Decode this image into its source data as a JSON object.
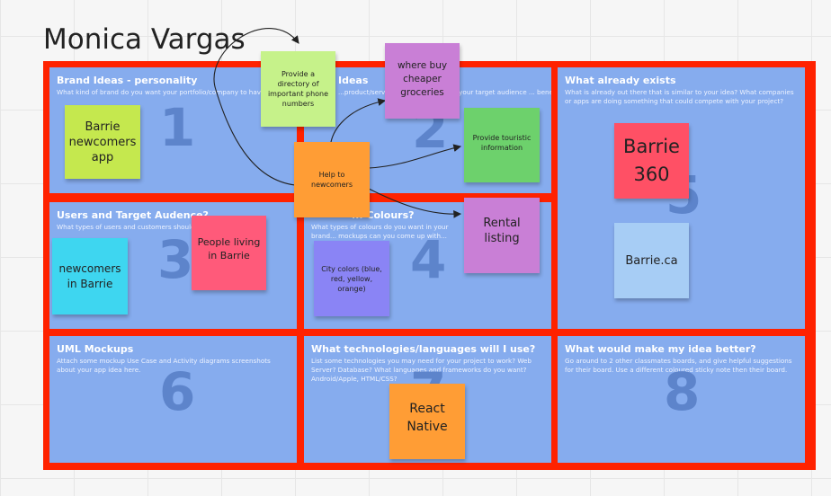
{
  "board": {
    "title": "Monica Vargas"
  },
  "sections": {
    "s1": {
      "heading": "Brand Ideas - personality",
      "desc": "What kind of brand do you want your portfolio/company to have?",
      "num": "1"
    },
    "s2": {
      "heading": "Ideas",
      "desc": "...product/service/experience ... help your target audience ... benefits the...",
      "num": "2"
    },
    "s3": {
      "heading": "Users and Target Audence?",
      "desc": "What types of users and customers should...",
      "num": "3"
    },
    "s4": {
      "heading": "... Colours?",
      "desc": "What types of colours do you want in your brand... mockups can you come up with...",
      "num": "4"
    },
    "s5": {
      "heading": "What already exists",
      "desc": "What is already out there that is similar to your idea? What companies or apps are doing something that could compete with your project?",
      "num": "5"
    },
    "s6": {
      "heading": "UML Mockups",
      "desc": "Attach some mockup Use Case and Activity diagrams screenshots about your app idea here.",
      "num": "6"
    },
    "s7": {
      "heading": "What technologies/languages will I use?",
      "desc": "List some technologies you may need for your project to work? Web Server? Database? What languages and frameworks do you want? Android/Apple, HTML/CSS?",
      "num": "7"
    },
    "s8": {
      "heading": "What would make my idea better?",
      "desc": "Go around to 2 other classmates boards, and give helpful suggestions for their board. Use a different coloured sticky note then their board.",
      "num": "8"
    }
  },
  "stickies": {
    "barrie_newcomers_app": {
      "text": "Barrie newcomers app",
      "color": "#c5e84e"
    },
    "directory": {
      "text": "Provide a directory of important phone numbers",
      "color": "#c6f28a"
    },
    "groceries": {
      "text": "where buy cheaper groceries",
      "color": "#c97fd6"
    },
    "touristic": {
      "text": "Provide touristic information",
      "color": "#6dd16c"
    },
    "help_newcomers": {
      "text": "Help to newcomers",
      "color": "#ff9d35"
    },
    "rental": {
      "text": "Rental listing",
      "color": "#c97fd6"
    },
    "people_living": {
      "text": "People living in Barrie",
      "color": "#ff5a7a"
    },
    "newcomers_barrie": {
      "text": "newcomers in Barrie",
      "color": "#3ed6f0"
    },
    "city_colors": {
      "text": "City colors (blue, red, yellow, orange)",
      "color": "#8a84f5"
    },
    "barrie360": {
      "text": "Barrie 360",
      "color": "#ff5065"
    },
    "barrie_ca": {
      "text": "Barrie.ca",
      "color": "#a7cdf5"
    },
    "react_native": {
      "text": "React Native",
      "color": "#ff9d35"
    }
  }
}
